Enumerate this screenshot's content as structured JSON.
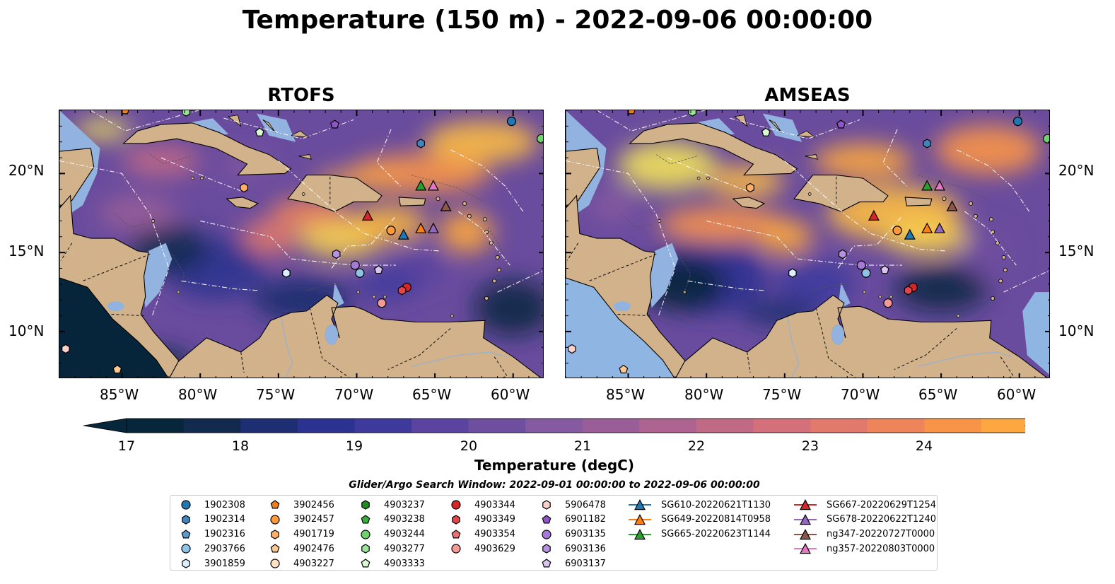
{
  "title": "Temperature (150 m) - 2022-09-06 00:00:00",
  "panels": [
    {
      "title": "RTOFS",
      "variant": "rtofs"
    },
    {
      "title": "AMSEAS",
      "variant": "amseas"
    }
  ],
  "lon_ticks": [
    "85°W",
    "80°W",
    "75°W",
    "70°W",
    "65°W",
    "60°W"
  ],
  "lat_ticks": [
    "20°N",
    "15°N",
    "10°N"
  ],
  "colorbar": {
    "label": "Temperature (degC)",
    "ticks": [
      "17",
      "18",
      "19",
      "20",
      "21",
      "22",
      "23",
      "24"
    ],
    "colors": [
      "#05263b",
      "#112a4e",
      "#1d2e73",
      "#2b3290",
      "#3e3a9c",
      "#5a44a0",
      "#6e4e9e",
      "#855aa0",
      "#995e98",
      "#ae6490",
      "#c16a86",
      "#d4707a",
      "#e1796c",
      "#ee845a",
      "#f89448",
      "#fca73f",
      "#fcbb42",
      "#f7d04f",
      "#f0e15b"
    ],
    "extend_low": "#05263b",
    "extend_high": "#eefb5a"
  },
  "search_window": "Glider/Argo Search Window: 2022-09-01 00:00:00 to 2022-09-06 00:00:00",
  "legend": [
    {
      "label": "1902308",
      "marker": "circle",
      "color": "#1f77b4"
    },
    {
      "label": "1902314",
      "marker": "hexagon",
      "color": "#3f86c0"
    },
    {
      "label": "1902316",
      "marker": "pentagon",
      "color": "#5a9bd0"
    },
    {
      "label": "2903766",
      "marker": "circle",
      "color": "#8fc4e8"
    },
    {
      "label": "3901859",
      "marker": "hexagon",
      "color": "#dcefff"
    },
    {
      "label": "3902456",
      "marker": "pentagon",
      "color": "#ee7f1a"
    },
    {
      "label": "3902457",
      "marker": "circle",
      "color": "#ff9a3c"
    },
    {
      "label": "4901719",
      "marker": "hexagon",
      "color": "#ffb066"
    },
    {
      "label": "4902476",
      "marker": "pentagon",
      "color": "#ffc992"
    },
    {
      "label": "4903227",
      "marker": "circle",
      "color": "#ffe3c4"
    },
    {
      "label": "4903237",
      "marker": "hexagon",
      "color": "#238b23"
    },
    {
      "label": "4903238",
      "marker": "pentagon",
      "color": "#3cae3c"
    },
    {
      "label": "4903244",
      "marker": "circle",
      "color": "#6ed36e"
    },
    {
      "label": "4903277",
      "marker": "hexagon",
      "color": "#9be39b"
    },
    {
      "label": "4903333",
      "marker": "pentagon",
      "color": "#d9f9d4"
    },
    {
      "label": "4903344",
      "marker": "circle",
      "color": "#d62728"
    },
    {
      "label": "4903349",
      "marker": "hexagon",
      "color": "#e0474a"
    },
    {
      "label": "4903354",
      "marker": "pentagon",
      "color": "#ee7073"
    },
    {
      "label": "4903629",
      "marker": "circle",
      "color": "#f59a95"
    },
    {
      "label": "5906478",
      "marker": "hexagon",
      "color": "#fbd1cc"
    },
    {
      "label": "6901182",
      "marker": "pentagon",
      "color": "#8e55c6"
    },
    {
      "label": "6903135",
      "marker": "circle",
      "color": "#a57ad8"
    },
    {
      "label": "6903136",
      "marker": "hexagon",
      "color": "#b692e0"
    },
    {
      "label": "6903137",
      "marker": "pentagon",
      "color": "#d9c4f2"
    },
    {
      "label": "SG610-20220621T1130",
      "marker": "triangle",
      "color": "#1f77b4"
    },
    {
      "label": "SG649-20220814T0958",
      "marker": "triangle",
      "color": "#ff7f0e"
    },
    {
      "label": "SG665-20220623T1144",
      "marker": "triangle",
      "color": "#2ca02c"
    },
    {
      "label": "SG667-20220629T1254",
      "marker": "triangle",
      "color": "#d62728"
    },
    {
      "label": "SG678-20220622T1240",
      "marker": "triangle",
      "color": "#9467bd"
    },
    {
      "label": "ng347-20220727T0000",
      "marker": "triangle",
      "color": "#8c564b"
    },
    {
      "label": "ng357-20220803T0000",
      "marker": "triangle",
      "color": "#e377c2"
    }
  ],
  "map_extent": {
    "lon": [
      -89,
      -58
    ],
    "lat": [
      7,
      24
    ]
  },
  "platform_positions": [
    {
      "id": "1902308",
      "lon": -60.1,
      "lat": 23.3
    },
    {
      "id": "1902314",
      "lon": -65.9,
      "lat": 21.9
    },
    {
      "id": "2903766",
      "lon": -69.8,
      "lat": 13.7
    },
    {
      "id": "3901859",
      "lon": -74.5,
      "lat": 13.7
    },
    {
      "id": "3902456",
      "lon": -84.8,
      "lat": 24.0
    },
    {
      "id": "3902457",
      "lon": -67.8,
      "lat": 16.4
    },
    {
      "id": "4901719",
      "lon": -77.2,
      "lat": 19.1
    },
    {
      "id": "4902476",
      "lon": -85.3,
      "lat": 7.6
    },
    {
      "id": "4903244",
      "lon": -58.2,
      "lat": 22.2
    },
    {
      "id": "4903277",
      "lon": -80.9,
      "lat": 23.9
    },
    {
      "id": "4903333",
      "lon": -76.2,
      "lat": 22.6
    },
    {
      "id": "4903344",
      "lon": -66.8,
      "lat": 12.8
    },
    {
      "id": "4903349",
      "lon": -67.1,
      "lat": 12.6
    },
    {
      "id": "4903629",
      "lon": -68.4,
      "lat": 11.8
    },
    {
      "id": "5906478",
      "lon": -88.6,
      "lat": 8.9
    },
    {
      "id": "6901182",
      "lon": -71.4,
      "lat": 23.1
    },
    {
      "id": "6903135",
      "lon": -70.1,
      "lat": 14.2
    },
    {
      "id": "6903136",
      "lon": -71.3,
      "lat": 14.9
    },
    {
      "id": "6903137",
      "lon": -68.6,
      "lat": 13.9
    },
    {
      "id": "SG610-20220621T1130",
      "lon": -67.0,
      "lat": 16.1
    },
    {
      "id": "SG649-20220814T0958",
      "lon": -65.9,
      "lat": 16.5
    },
    {
      "id": "SG665-20220623T1144",
      "lon": -65.9,
      "lat": 19.2
    },
    {
      "id": "SG667-20220629T1254",
      "lon": -69.3,
      "lat": 17.3
    },
    {
      "id": "SG678-20220622T1240",
      "lon": -65.1,
      "lat": 16.5
    },
    {
      "id": "ng347-20220727T0000",
      "lon": -64.3,
      "lat": 17.9
    },
    {
      "id": "ng357-20220803T0000",
      "lon": -65.1,
      "lat": 19.2
    }
  ]
}
